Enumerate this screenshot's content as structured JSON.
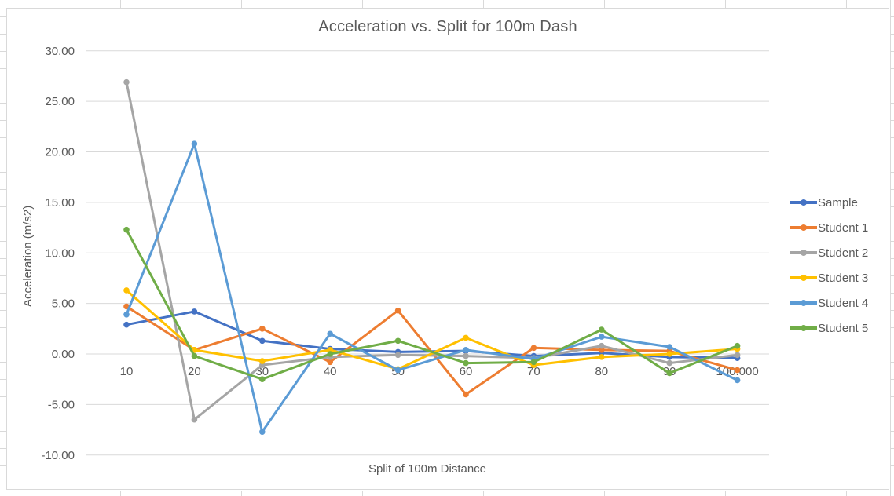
{
  "chart_data": {
    "type": "line",
    "title": "Acceleration vs. Split for 100m Dash",
    "xlabel": "Split of 100m Distance",
    "ylabel": "Acceleration (m/s2)",
    "categories": [
      "10",
      "20",
      "30",
      "40",
      "50",
      "60",
      "70",
      "80",
      "90",
      "100.000"
    ],
    "ylim": [
      -10,
      30
    ],
    "ytick_step": 5,
    "ytick_labels": [
      "-10.00",
      "-5.00",
      "0.00",
      "5.00",
      "10.00",
      "15.00",
      "20.00",
      "25.00",
      "30.00"
    ],
    "grid": true,
    "legend_position": "right",
    "series": [
      {
        "name": "Sample",
        "color": "#4472C4",
        "values": [
          2.9,
          4.2,
          1.3,
          0.5,
          0.2,
          0.3,
          -0.2,
          0.1,
          -0.3,
          -0.4
        ]
      },
      {
        "name": "Student 1",
        "color": "#ED7D31",
        "values": [
          4.7,
          0.4,
          2.5,
          -0.8,
          4.3,
          -4.0,
          0.6,
          0.4,
          0.3,
          -1.6
        ]
      },
      {
        "name": "Student 2",
        "color": "#A5A5A5",
        "values": [
          26.9,
          -6.5,
          -1.1,
          -0.3,
          -0.1,
          -0.2,
          -0.4,
          0.8,
          -0.9,
          -0.1
        ]
      },
      {
        "name": "Student 3",
        "color": "#FFC000",
        "values": [
          6.3,
          0.4,
          -0.7,
          0.4,
          -1.5,
          1.6,
          -1.1,
          -0.3,
          0.0,
          0.5
        ]
      },
      {
        "name": "Student 4",
        "color": "#5B9BD5",
        "values": [
          3.9,
          20.8,
          -7.7,
          2.0,
          -1.6,
          0.4,
          -0.5,
          1.7,
          0.7,
          -2.6
        ]
      },
      {
        "name": "Student 5",
        "color": "#70AD47",
        "values": [
          12.3,
          -0.2,
          -2.5,
          0.0,
          1.3,
          -0.9,
          -0.8,
          2.4,
          -1.9,
          0.8
        ]
      }
    ],
    "text_color": "#595959",
    "gridline_color": "#D9D9D9"
  }
}
